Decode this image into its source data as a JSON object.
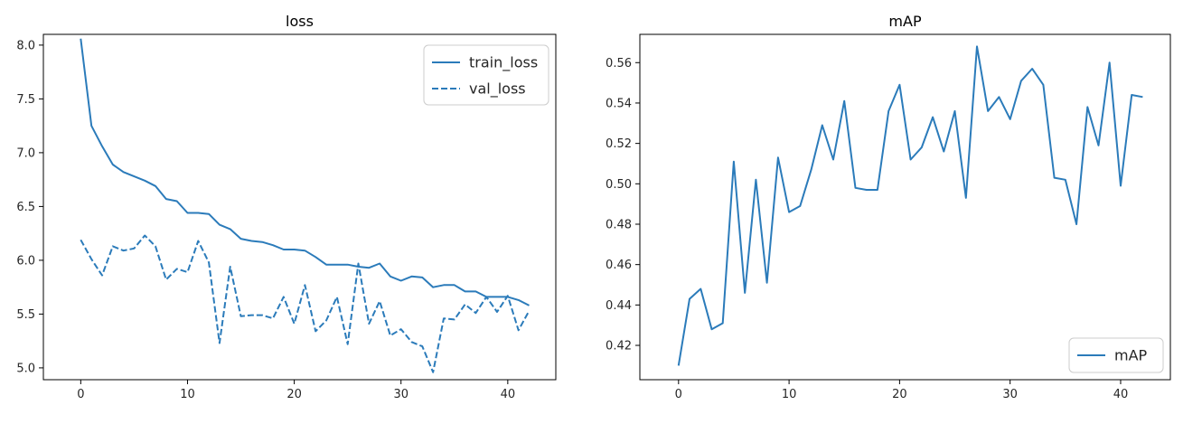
{
  "colors": {
    "line": "#2b7bba",
    "axis": "#000000",
    "legend_border": "#cccccc"
  },
  "chart_data": [
    {
      "type": "line",
      "title": "loss",
      "xlim": [
        -3.5,
        44.5
      ],
      "ylim": [
        4.89,
        8.1
      ],
      "xticks": [
        0,
        10,
        20,
        30,
        40
      ],
      "yticks": [
        5.0,
        5.5,
        6.0,
        6.5,
        7.0,
        7.5,
        8.0
      ],
      "ytick_labels": [
        "5.0",
        "5.5",
        "6.0",
        "6.5",
        "7.0",
        "7.5",
        "8.0"
      ],
      "legend": "top-right",
      "x": [
        0,
        1,
        2,
        3,
        4,
        5,
        6,
        7,
        8,
        9,
        10,
        11,
        12,
        13,
        14,
        15,
        16,
        17,
        18,
        19,
        20,
        21,
        22,
        23,
        24,
        25,
        26,
        27,
        28,
        29,
        30,
        31,
        32,
        33,
        34,
        35,
        36,
        37,
        38,
        39,
        40,
        41,
        42
      ],
      "series": [
        {
          "name": "train_loss",
          "style": "solid",
          "values": [
            8.06,
            7.25,
            7.06,
            6.89,
            6.82,
            6.78,
            6.74,
            6.69,
            6.57,
            6.55,
            6.44,
            6.44,
            6.43,
            6.33,
            6.29,
            6.2,
            6.18,
            6.17,
            6.14,
            6.1,
            6.1,
            6.09,
            6.03,
            5.96,
            5.96,
            5.96,
            5.94,
            5.93,
            5.97,
            5.85,
            5.81,
            5.85,
            5.84,
            5.75,
            5.77,
            5.77,
            5.71,
            5.71,
            5.66,
            5.66,
            5.66,
            5.63,
            5.58
          ]
        },
        {
          "name": "val_loss",
          "style": "dashed",
          "values": [
            6.19,
            6.01,
            5.86,
            6.13,
            6.09,
            6.11,
            6.23,
            6.13,
            5.82,
            5.92,
            5.89,
            6.18,
            5.98,
            5.23,
            5.94,
            5.48,
            5.49,
            5.49,
            5.46,
            5.66,
            5.41,
            5.77,
            5.34,
            5.44,
            5.66,
            5.22,
            5.97,
            5.41,
            5.62,
            5.3,
            5.36,
            5.24,
            5.2,
            4.96,
            5.46,
            5.45,
            5.59,
            5.51,
            5.66,
            5.52,
            5.67,
            5.35,
            5.53
          ]
        }
      ]
    },
    {
      "type": "line",
      "title": "mAP",
      "xlim": [
        -3.5,
        44.5
      ],
      "ylim": [
        0.403,
        0.574
      ],
      "xticks": [
        0,
        10,
        20,
        30,
        40
      ],
      "yticks": [
        0.42,
        0.44,
        0.46,
        0.48,
        0.5,
        0.52,
        0.54,
        0.56
      ],
      "ytick_labels": [
        "0.42",
        "0.44",
        "0.46",
        "0.48",
        "0.50",
        "0.52",
        "0.54",
        "0.56"
      ],
      "legend": "bottom-right",
      "x": [
        0,
        1,
        2,
        3,
        4,
        5,
        6,
        7,
        8,
        9,
        10,
        11,
        12,
        13,
        14,
        15,
        16,
        17,
        18,
        19,
        20,
        21,
        22,
        23,
        24,
        25,
        26,
        27,
        28,
        29,
        30,
        31,
        32,
        33,
        34,
        35,
        36,
        37,
        38,
        39,
        40,
        41,
        42
      ],
      "series": [
        {
          "name": "mAP",
          "style": "solid",
          "values": [
            0.41,
            0.443,
            0.448,
            0.428,
            0.431,
            0.511,
            0.446,
            0.502,
            0.451,
            0.513,
            0.486,
            0.489,
            0.507,
            0.529,
            0.512,
            0.541,
            0.498,
            0.497,
            0.497,
            0.536,
            0.549,
            0.512,
            0.518,
            0.533,
            0.516,
            0.536,
            0.493,
            0.568,
            0.536,
            0.543,
            0.532,
            0.551,
            0.557,
            0.549,
            0.503,
            0.502,
            0.48,
            0.538,
            0.519,
            0.56,
            0.499,
            0.544,
            0.543
          ]
        }
      ]
    }
  ]
}
